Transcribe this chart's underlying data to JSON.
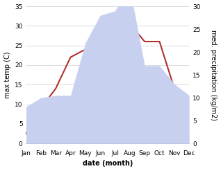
{
  "months": [
    "Jan",
    "Feb",
    "Mar",
    "Apr",
    "May",
    "Jun",
    "Jul",
    "Aug",
    "Sep",
    "Oct",
    "Nov",
    "Dec"
  ],
  "temp": [
    2.5,
    9.0,
    14.0,
    22.0,
    24.0,
    27.5,
    31.5,
    30.5,
    26.0,
    26.0,
    14.0,
    10.0
  ],
  "precip": [
    8.0,
    10.0,
    10.5,
    10.5,
    22.0,
    28.0,
    29.0,
    34.0,
    17.0,
    17.0,
    13.0,
    10.5
  ],
  "temp_color": "#b03030",
  "precip_fill_color": "#c8d0f0",
  "ylabel_left": "max temp (C)",
  "ylabel_right": "med. precipitation (kg/m2)",
  "xlabel": "date (month)",
  "ylim_left": [
    0,
    35
  ],
  "ylim_right": [
    0,
    30
  ],
  "yticks_left": [
    0,
    5,
    10,
    15,
    20,
    25,
    30,
    35
  ],
  "yticks_right": [
    0,
    5,
    10,
    15,
    20,
    25,
    30
  ],
  "bg_color": "#ffffff",
  "label_fontsize": 7,
  "tick_fontsize": 6.5
}
